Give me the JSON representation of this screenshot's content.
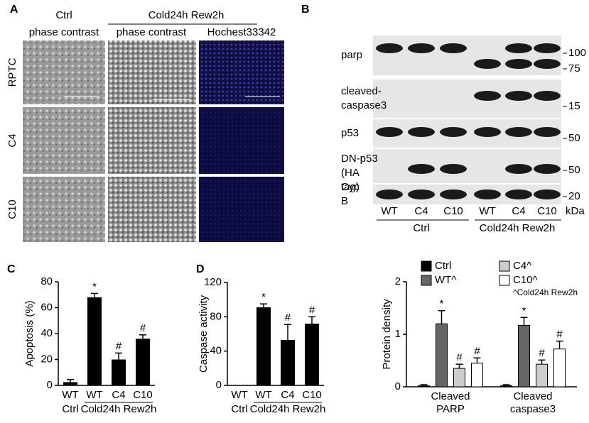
{
  "panels": {
    "a": "A",
    "b": "B",
    "c": "C",
    "d": "D"
  },
  "micrographs": {
    "headers": {
      "ctrl": "Ctrl",
      "ctrl_sub": "phase contrast",
      "treat": "Cold24h Rew2h",
      "treat_sub1": "phase contrast",
      "treat_sub2": "Hochest33342"
    },
    "rows": [
      "RPTC",
      "C4",
      "C10"
    ]
  },
  "blot": {
    "rows": [
      {
        "label": "parp",
        "markers": [
          "100",
          "75"
        ]
      },
      {
        "label": "cleaved-caspase3",
        "markers": [
          "15"
        ]
      },
      {
        "label": "p53",
        "markers": [
          "50"
        ]
      },
      {
        "label": "DN-p53 (HA tag)",
        "markers": [
          "50"
        ]
      },
      {
        "label": "Cyc B",
        "markers": [
          "20"
        ]
      }
    ],
    "lanes": [
      "WT",
      "C4",
      "C10",
      "WT",
      "C4",
      "C10"
    ],
    "unit": "kDa",
    "groups": [
      "Ctrl",
      "Cold24h Rew2h"
    ]
  },
  "chart_data": [
    {
      "type": "bar",
      "ylabel": "Apoptosis (%)",
      "categories": [
        "WT",
        "WT",
        "C4",
        "C10"
      ],
      "values": [
        2.5,
        68,
        20,
        36
      ],
      "errors": [
        2,
        3,
        5,
        3
      ],
      "color": "#000000",
      "ylim": [
        0,
        80
      ],
      "yticks": [
        0,
        20,
        40,
        60,
        80
      ],
      "groups": [
        {
          "label": "Ctrl",
          "size": 1
        },
        {
          "label": "Cold24h Rew2h",
          "size": 3
        }
      ],
      "annotations": [
        {
          "text": "*",
          "category": 1
        },
        {
          "text": "#",
          "category": 2
        },
        {
          "text": "#",
          "category": 3
        }
      ]
    },
    {
      "type": "bar",
      "ylabel": "Caspase activity",
      "categories": [
        "WT",
        "WT",
        "C4",
        "C10"
      ],
      "values": [
        0,
        91,
        53,
        72
      ],
      "errors": [
        0,
        4,
        18,
        8
      ],
      "color": "#000000",
      "ylim": [
        0,
        120
      ],
      "yticks": [
        0,
        40,
        80,
        120
      ],
      "groups": [
        {
          "label": "Ctrl",
          "size": 1
        },
        {
          "label": "Cold24h Rew2h",
          "size": 3
        }
      ],
      "annotations": [
        {
          "text": "*",
          "category": 1
        },
        {
          "text": "#",
          "category": 2
        },
        {
          "text": "#",
          "category": 3
        }
      ]
    },
    {
      "type": "grouped-bar",
      "ylabel": "Protein density",
      "categories": [
        "Cleaved PARP",
        "Cleaved caspase3"
      ],
      "series": [
        {
          "name": "Ctrl",
          "color": "#000000",
          "values": [
            0.02,
            0.02
          ],
          "errors": [
            0.02,
            0.02
          ]
        },
        {
          "name": "WT^",
          "color": "#666666",
          "values": [
            1.2,
            1.17
          ],
          "errors": [
            0.25,
            0.15
          ],
          "annotation": "*"
        },
        {
          "name": "C4^",
          "color": "#cccccc",
          "values": [
            0.35,
            0.43
          ],
          "errors": [
            0.08,
            0.08
          ],
          "annotation": "#"
        },
        {
          "name": "C10^",
          "color": "#ffffff",
          "values": [
            0.45,
            0.72
          ],
          "errors": [
            0.1,
            0.15
          ],
          "annotation": "#"
        }
      ],
      "legend_note": "^Cold24h Rew2h",
      "ylim": [
        0,
        2
      ],
      "yticks": [
        0,
        1,
        2
      ]
    }
  ]
}
